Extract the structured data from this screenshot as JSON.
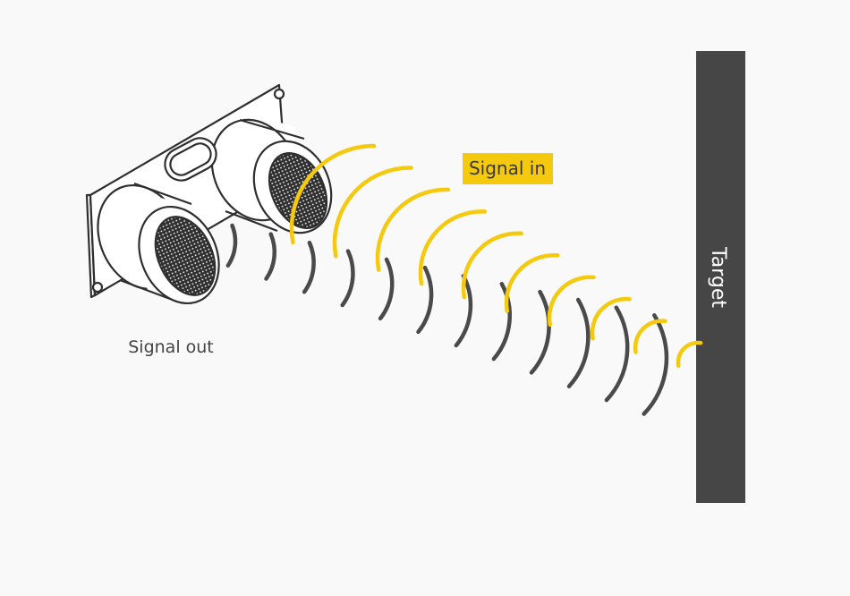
{
  "labels": {
    "signal_in": "Signal in",
    "signal_out": "Signal out",
    "target": "Target"
  },
  "colors": {
    "background": "#f9f9f9",
    "wave_in": "#f5c90d",
    "wave_out": "#4a4a4a",
    "target_bar": "#464646",
    "sensor_stroke": "#2f2f2f",
    "sensor_fill": "#ffffff",
    "label_highlight": "#f5c90d"
  },
  "waves": {
    "outgoing_count": 12,
    "incoming_count": 10
  }
}
